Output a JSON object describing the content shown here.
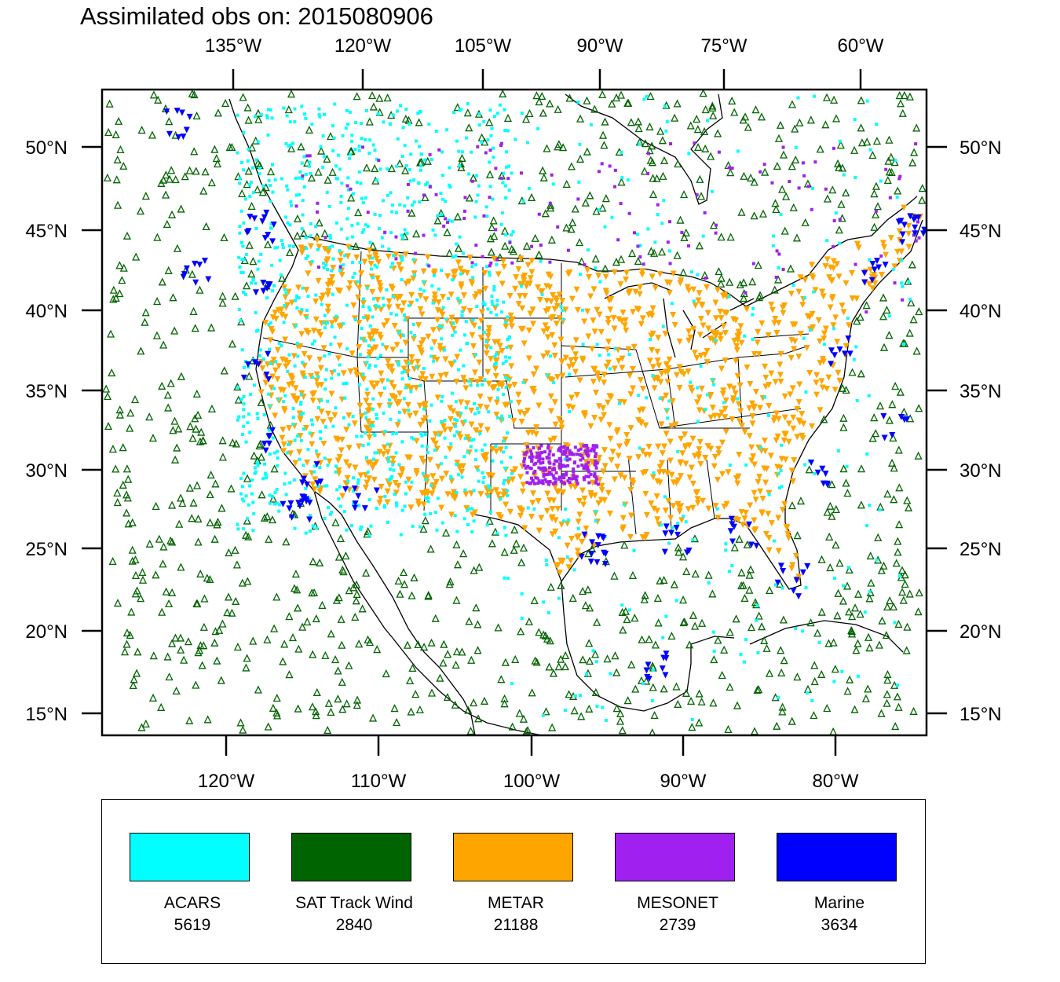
{
  "title": "Assimilated obs on: 2015080906",
  "axes": {
    "top": [
      "135°W",
      "120°W",
      "105°W",
      "90°W",
      "75°W",
      "60°W"
    ],
    "bottom": [
      "120°W",
      "110°W",
      "100°W",
      "90°W",
      "80°W"
    ],
    "left": [
      "50°N",
      "45°N",
      "40°N",
      "35°N",
      "30°N",
      "25°N",
      "20°N",
      "15°N"
    ],
    "right": [
      "50°N",
      "45°N",
      "40°N",
      "35°N",
      "30°N",
      "25°N",
      "20°N",
      "15°N"
    ]
  },
  "legend": [
    {
      "name": "ACARS",
      "count": "5619",
      "color": "#00ffff"
    },
    {
      "name": "SAT Track Wind",
      "count": "2840",
      "color": "#006400"
    },
    {
      "name": "METAR",
      "count": "21188",
      "color": "#ffa500"
    },
    {
      "name": "MESONET",
      "count": "2739",
      "color": "#a020f0"
    },
    {
      "name": "Marine",
      "count": "3634",
      "color": "#0000ff"
    }
  ],
  "map": {
    "lon_range": [
      -128,
      -74
    ],
    "lat_range": [
      14,
      53
    ],
    "background": "#ffffff"
  }
}
